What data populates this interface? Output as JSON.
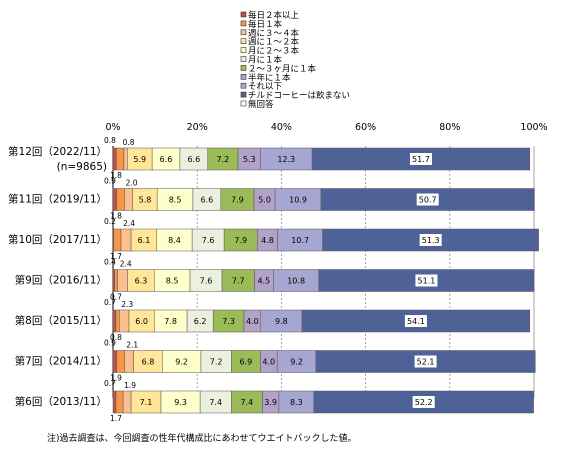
{
  "chart_data": {
    "type": "bar",
    "orientation": "horizontal",
    "stacked": true,
    "percent_scale": true,
    "xlim": [
      0,
      100
    ],
    "x_ticks": [
      "0%",
      "20%",
      "40%",
      "60%",
      "80%",
      "100%"
    ],
    "grid": true,
    "legend_position": "top",
    "categories": [
      [
        "第12回（2022/11）",
        "(n=9865)"
      ],
      [
        "第11回（2019/11）"
      ],
      [
        "第10回（2017/11）"
      ],
      [
        "第9回（2016/11）"
      ],
      [
        "第8回（2015/11）"
      ],
      [
        "第7回（2014/11）"
      ],
      [
        "第6回（2013/11）"
      ]
    ],
    "series": [
      {
        "name": "毎日２本以上",
        "color": "#c0504d",
        "values": [
          0.8,
          0.9,
          0.2,
          0.4,
          0.7,
          0.9,
          0.7
        ]
      },
      {
        "name": "毎日１本",
        "color": "#f79646",
        "values": [
          1.8,
          1.8,
          1.7,
          0.7,
          0.8,
          1.9,
          1.7
        ]
      },
      {
        "name": "週に３～４本",
        "color": "#fac090",
        "values": [
          0.8,
          2.0,
          2.4,
          2.4,
          2.3,
          2.1,
          1.9
        ]
      },
      {
        "name": "週に１～２本",
        "color": "#ffe699",
        "values": [
          5.9,
          5.8,
          6.1,
          6.3,
          6.0,
          6.8,
          7.1
        ]
      },
      {
        "name": "月に２～３本",
        "color": "#ffffcc",
        "values": [
          6.6,
          8.5,
          8.4,
          8.5,
          7.8,
          9.2,
          9.3
        ]
      },
      {
        "name": "月に１本",
        "color": "#ebf1de",
        "values": [
          6.6,
          6.6,
          7.6,
          7.6,
          6.2,
          7.2,
          7.4
        ]
      },
      {
        "name": "２～３ヶ月に１本",
        "color": "#9bbb59",
        "values": [
          7.2,
          7.9,
          7.9,
          7.7,
          7.3,
          6.9,
          7.4
        ]
      },
      {
        "name": "半年に１本",
        "color": "#b3a2c7",
        "values": [
          5.3,
          5.0,
          4.8,
          4.5,
          4.0,
          4.0,
          3.9
        ]
      },
      {
        "name": "それ以下",
        "color": "#a6a6d2",
        "values": [
          12.3,
          10.9,
          10.7,
          10.8,
          9.8,
          9.2,
          8.3
        ]
      },
      {
        "name": "チルドコーヒーは飲まない",
        "color": "#4f6298",
        "values": [
          51.7,
          50.7,
          51.3,
          51.1,
          54.1,
          52.1,
          52.2
        ]
      },
      {
        "name": "無回答",
        "color": "#ffffff",
        "values": [
          0.0,
          0.0,
          0.0,
          0.0,
          0.0,
          0.0,
          0.0
        ]
      }
    ],
    "note": "注)過去調査は、今回調査の性年代構成比にあわせてウエイトバックした値。"
  }
}
